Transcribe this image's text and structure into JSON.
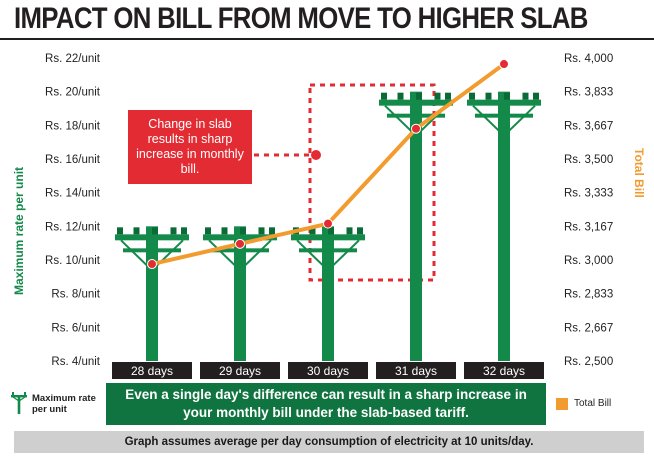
{
  "title": "IMPACT ON BILL FROM MOVE TO HIGHER SLAB",
  "colors": {
    "pole": "#138a4a",
    "pole_dark": "#0c6a37",
    "bill_line": "#f29b2e",
    "highlight": "#e32b33",
    "day_label_bg": "#231f20",
    "banner": "#0f7440"
  },
  "chart_data": {
    "type": "bar",
    "categories": [
      "28 days",
      "29 days",
      "30 days",
      "31 days",
      "32 days"
    ],
    "series": [
      {
        "name": "Maximum rate per unit",
        "axis": "left",
        "values": [
          12,
          12,
          12,
          20,
          20
        ]
      },
      {
        "name": "Total Bill",
        "axis": "right",
        "mark": "line",
        "values": [
          2980,
          3080,
          3180,
          3650,
          3970
        ]
      }
    ],
    "ylabel_left": "Maximum rate per unit",
    "ylabel_right": "Total Bill",
    "ylim_left": [
      4,
      22
    ],
    "ylim_right": [
      2500,
      4000
    ],
    "yticks_left": [
      "Rs. 4/unit",
      "Rs. 6/unit",
      "Rs. 8/unit",
      "Rs. 10/unit",
      "Rs. 12/unit",
      "Rs. 14/unit",
      "Rs. 16/unit",
      "Rs. 18/unit",
      "Rs. 20/unit",
      "Rs. 22/unit"
    ],
    "yticks_right": [
      "Rs. 2,500",
      "Rs. 2,667",
      "Rs. 2,833",
      "Rs. 3,000",
      "Rs. 3,167",
      "Rs. 3,333",
      "Rs. 3,500",
      "Rs. 3,667",
      "Rs. 3,833",
      "Rs. 4,000"
    ],
    "annotation": "Change in slab results in sharp increase in monthly bill.",
    "legend": "bottom"
  },
  "legend_left_label": "Maximum rate per unit",
  "legend_right_label": "Total Bill",
  "banner_text": "Even a single day's difference can result in a sharp increase in your monthly bill under the slab-based tariff.",
  "footnote": "Graph assumes average per day consumption of electricity at 10 units/day."
}
